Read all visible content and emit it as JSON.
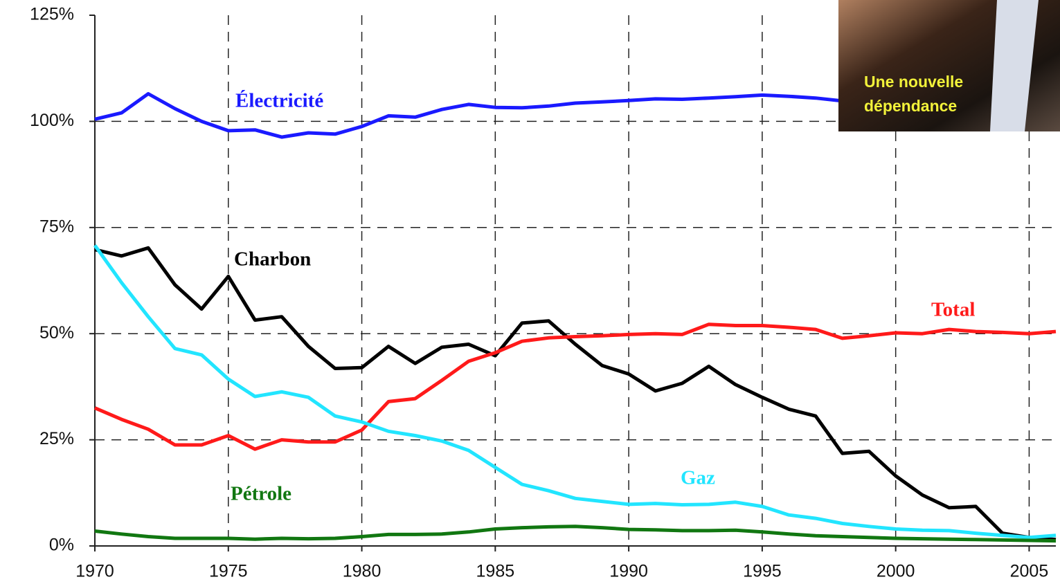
{
  "chart_data": {
    "type": "line",
    "x": [
      1970,
      1971,
      1972,
      1973,
      1974,
      1975,
      1976,
      1977,
      1978,
      1979,
      1980,
      1981,
      1982,
      1983,
      1984,
      1985,
      1986,
      1987,
      1988,
      1989,
      1990,
      1991,
      1992,
      1993,
      1994,
      1995,
      1996,
      1997,
      1998,
      1999,
      2000,
      2001,
      2002,
      2003,
      2004,
      2005,
      2006
    ],
    "series": [
      {
        "name": "Électricité",
        "color": "#1a1aff",
        "values": [
          100.5,
          102,
          106.5,
          103,
          100,
          97.8,
          98,
          96.3,
          97.3,
          97,
          98.8,
          101.3,
          101,
          102.8,
          104,
          103.3,
          103.2,
          103.6,
          104.3,
          104.6,
          104.9,
          105.3,
          105.2,
          105.5,
          105.8,
          106.2,
          105.9,
          105.5,
          104.8,
          null,
          null,
          null,
          null,
          null,
          null,
          null,
          null
        ]
      },
      {
        "name": "Charbon",
        "color": "#000000",
        "values": [
          69.8,
          68.3,
          70.2,
          61.5,
          55.8,
          63.5,
          53.2,
          54,
          47,
          41.8,
          42,
          47,
          43,
          46.8,
          47.5,
          44.8,
          52.5,
          53,
          47.5,
          42.5,
          40.5,
          36.5,
          38.3,
          42.3,
          38,
          35,
          32.2,
          30.6,
          21.8,
          22.3,
          16.5,
          12,
          9,
          9.3,
          3,
          2,
          1.5
        ]
      },
      {
        "name": "Total",
        "color": "#ff1a1a",
        "values": [
          32.5,
          29.8,
          27.5,
          23.8,
          23.8,
          26,
          22.8,
          25,
          24.5,
          24.5,
          27.3,
          34,
          34.7,
          39,
          43.5,
          45.5,
          48.2,
          49,
          49.3,
          49.5,
          49.8,
          50,
          49.8,
          52.2,
          51.9,
          51.9,
          51.5,
          51,
          48.9,
          49.5,
          50.2,
          50,
          51,
          50.5,
          50.3,
          50,
          50.5
        ]
      },
      {
        "name": "Gaz",
        "color": "#22e5ff",
        "values": [
          70.8,
          62,
          54,
          46.5,
          45,
          39.3,
          35.2,
          36.3,
          35,
          30.6,
          29.2,
          27,
          26,
          24.7,
          22.5,
          18.5,
          14.5,
          13,
          11.2,
          10.5,
          9.8,
          10,
          9.7,
          9.8,
          10.3,
          9.3,
          7.3,
          6.5,
          5.3,
          4.6,
          4,
          3.7,
          3.6,
          3,
          2.5,
          2,
          2.5
        ]
      },
      {
        "name": "Pétrole",
        "color": "#117711",
        "values": [
          3.5,
          2.8,
          2.2,
          1.8,
          1.8,
          1.8,
          1.6,
          1.8,
          1.7,
          1.8,
          2.2,
          2.7,
          2.7,
          2.8,
          3.3,
          4,
          4.3,
          4.5,
          4.6,
          4.3,
          3.9,
          3.8,
          3.6,
          3.6,
          3.7,
          3.3,
          2.8,
          2.4,
          2.2,
          2,
          1.8,
          1.7,
          1.6,
          1.5,
          1.4,
          1.3,
          1.2
        ]
      }
    ],
    "xlim": [
      1970,
      2006
    ],
    "xticks": [
      1970,
      1975,
      1980,
      1985,
      1990,
      1995,
      2000,
      2005
    ],
    "ylim": [
      0,
      125
    ],
    "yticks": [
      {
        "value": 0,
        "label": "0%"
      },
      {
        "value": 25,
        "label": "25%"
      },
      {
        "value": 50,
        "label": "50%"
      },
      {
        "value": 75,
        "label": "75%"
      },
      {
        "value": 100,
        "label": "100%"
      },
      {
        "value": 125,
        "label": "125%"
      }
    ],
    "grid": true,
    "annotations": [
      "Une nouvelle",
      "dépendance"
    ]
  }
}
